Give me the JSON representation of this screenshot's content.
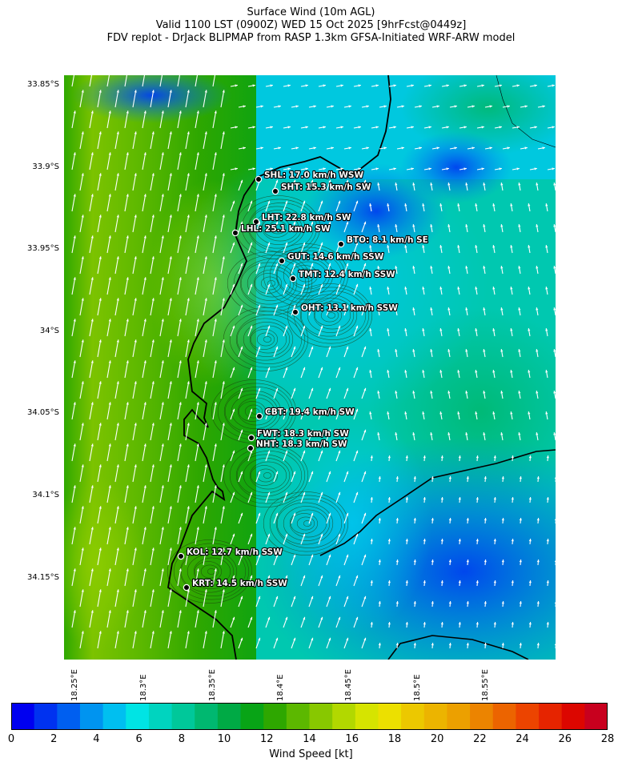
{
  "header": {
    "line1": "Surface Wind (10m AGL)",
    "line2": "Valid 1100 LST (0900Z) WED 15 Oct 2025 [9hrFcst@0449z]",
    "line3": "FDV replot - DrJack BLIPMAP from RASP 1.3km GFSA-Initiated WRF-ARW model"
  },
  "map": {
    "y_ticks": [
      "33.85°S",
      "33.9°S",
      "33.95°S",
      "34°S",
      "34.05°S",
      "34.1°S",
      "34.15°S"
    ],
    "x_ticks": [
      "18.25°E",
      "18.3°E",
      "18.35°E",
      "18.4°E",
      "18.45°E",
      "18.5°E",
      "18.55°E"
    ],
    "stations": [
      {
        "label": "SHL: 17.0 km/h WSW"
      },
      {
        "label": "SHT: 15.3 km/h SW"
      },
      {
        "label": "LHT: 22.8 km/h SW"
      },
      {
        "label": "LHL: 25.1 km/h SW"
      },
      {
        "label": "BTO: 8.1 km/h SE"
      },
      {
        "label": "GUT: 14.6 km/h SSW"
      },
      {
        "label": "TMT: 12.4 km/h SSW"
      },
      {
        "label": "OHT: 13.1 km/h SSW"
      },
      {
        "label": "CBT: 19.4 km/h SW"
      },
      {
        "label": "FWT: 18.3 km/h SW"
      },
      {
        "label": "NHT: 18.3 km/h SW"
      },
      {
        "label": "KOL: 12.7 km/h SSW"
      },
      {
        "label": "KRT: 14.5 km/h SSW"
      }
    ]
  },
  "colorbar": {
    "label": "Wind Speed [kt]",
    "ticks": [
      "0",
      "2",
      "4",
      "6",
      "8",
      "10",
      "12",
      "14",
      "16",
      "18",
      "20",
      "22",
      "24",
      "26",
      "28"
    ],
    "colors": [
      "#0000f0",
      "#0032f0",
      "#005ff0",
      "#0094f0",
      "#00bff0",
      "#00e4e4",
      "#00d4bf",
      "#00c89a",
      "#00b870",
      "#00aa45",
      "#08a416",
      "#2ea700",
      "#5cb800",
      "#88c800",
      "#b2d800",
      "#d6e400",
      "#ece000",
      "#ecc800",
      "#ecb400",
      "#eca000",
      "#ec8400",
      "#ec6400",
      "#ec4400",
      "#e62400",
      "#dc0600",
      "#c8001e"
    ]
  }
}
